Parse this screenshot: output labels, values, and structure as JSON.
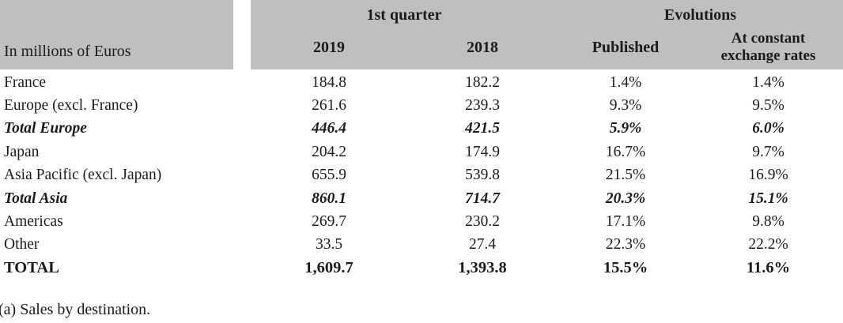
{
  "colors": {
    "header_bg": "#bfbfbf",
    "text": "#1c1c1c"
  },
  "table": {
    "unit_label": "In millions of Euros",
    "groups": [
      "1st quarter",
      "Evolutions"
    ],
    "columns": [
      "2019",
      "2018",
      "Published",
      "At constant exchange rates"
    ],
    "rows": [
      {
        "label": "France",
        "values": [
          "184.8",
          "182.2",
          "1.4%",
          "1.4%"
        ],
        "emphasis": "normal"
      },
      {
        "label": "Europe (excl. France)",
        "values": [
          "261.6",
          "239.3",
          "9.3%",
          "9.5%"
        ],
        "emphasis": "normal"
      },
      {
        "label": "Total Europe",
        "values": [
          "446.4",
          "421.5",
          "5.9%",
          "6.0%"
        ],
        "emphasis": "subtotal"
      },
      {
        "label": "Japan",
        "values": [
          "204.2",
          "174.9",
          "16.7%",
          "9.7%"
        ],
        "emphasis": "normal"
      },
      {
        "label": "Asia Pacific (excl. Japan)",
        "values": [
          "655.9",
          "539.8",
          "21.5%",
          "16.9%"
        ],
        "emphasis": "normal"
      },
      {
        "label": "Total Asia",
        "values": [
          "860.1",
          "714.7",
          "20.3%",
          "15.1%"
        ],
        "emphasis": "subtotal"
      },
      {
        "label": "Americas",
        "values": [
          "269.7",
          "230.2",
          "17.1%",
          "9.8%"
        ],
        "emphasis": "normal"
      },
      {
        "label": "Other",
        "values": [
          "33.5",
          "27.4",
          "22.3%",
          "22.2%"
        ],
        "emphasis": "normal"
      },
      {
        "label": "TOTAL",
        "values": [
          "1,609.7",
          "1,393.8",
          "15.5%",
          "11.6%"
        ],
        "emphasis": "total"
      }
    ],
    "footnote": "(a) Sales by destination."
  }
}
